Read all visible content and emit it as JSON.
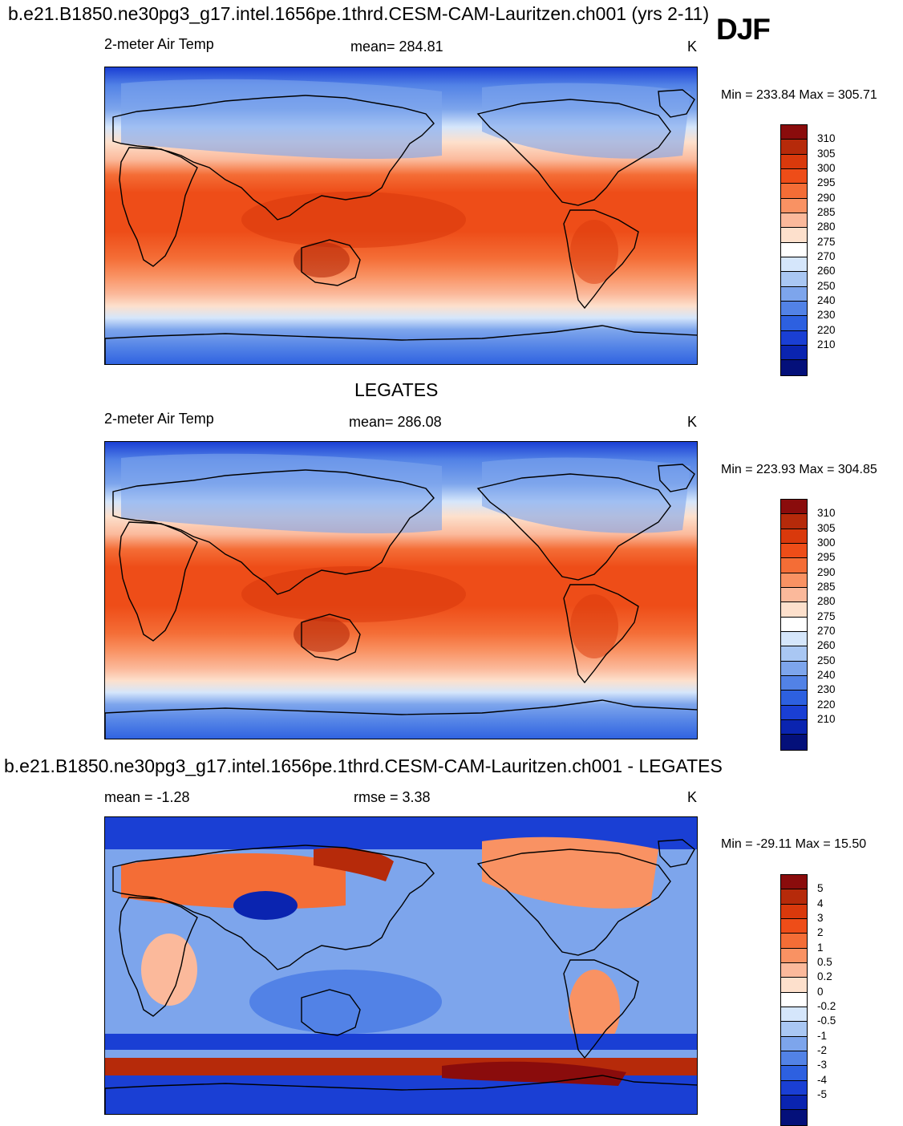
{
  "title": "b.e21.B1850.ne30pg3_g17.intel.1656pe.1thrd.CESM-CAM-Lauritzen.ch001 (yrs 2-11)",
  "season": "DJF",
  "panels": [
    {
      "title": "",
      "left_label": "2-meter Air Temp",
      "center_label": "mean= 284.81",
      "units": "K",
      "minmax": "Min = 233.84 Max = 305.71"
    },
    {
      "title": "LEGATES",
      "left_label": "2-meter Air Temp",
      "center_label": "mean= 286.08",
      "units": "K",
      "minmax": "Min = 223.93 Max = 304.85"
    },
    {
      "title": "b.e21.B1850.ne30pg3_g17.intel.1656pe.1thrd.CESM-CAM-Lauritzen.ch001 - LEGATES",
      "left_label": "mean =  -1.28",
      "center_label": "rmse =   3.38",
      "units": "K",
      "minmax": "Min = -29.11 Max =  15.50"
    }
  ],
  "colorbars": {
    "temp": {
      "levels": [
        "310",
        "305",
        "300",
        "295",
        "290",
        "285",
        "280",
        "275",
        "270",
        "260",
        "250",
        "240",
        "230",
        "220",
        "210"
      ],
      "colors": [
        "#8a0c0c",
        "#b62a0a",
        "#d9390c",
        "#ee4d18",
        "#f46d36",
        "#f99263",
        "#fbb99b",
        "#fde0cc",
        "#ffffff",
        "#d5e6fb",
        "#a9c7f3",
        "#7da5ec",
        "#5282e6",
        "#2d60e0",
        "#1a3fd4",
        "#0a24b0",
        "#04107a"
      ]
    },
    "diff": {
      "levels": [
        "5",
        "4",
        "3",
        "2",
        "1",
        "0.5",
        "0.2",
        "0",
        "-0.2",
        "-0.5",
        "-1",
        "-2",
        "-3",
        "-4",
        "-5"
      ],
      "colors": [
        "#8a0c0c",
        "#b62a0a",
        "#d9390c",
        "#ee4d18",
        "#f46d36",
        "#f99263",
        "#fbb99b",
        "#fde0cc",
        "#ffffff",
        "#d5e6fb",
        "#a9c7f3",
        "#7da5ec",
        "#5282e6",
        "#2d60e0",
        "#1a3fd4",
        "#0a24b0",
        "#04107a"
      ]
    }
  }
}
